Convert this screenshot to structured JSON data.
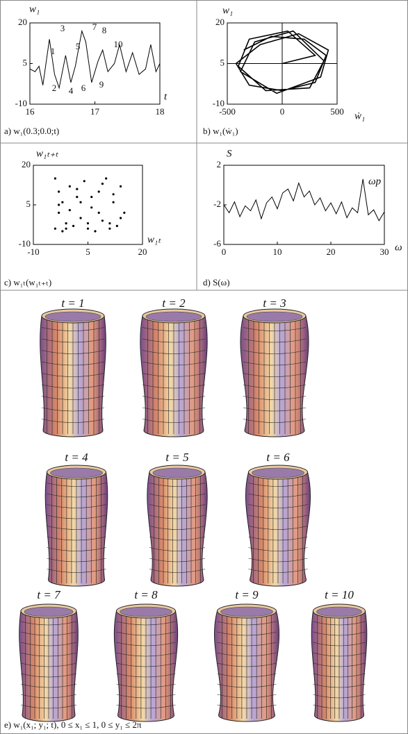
{
  "chart_data": [
    {
      "type": "line",
      "caption": "a) w₁(0.3;0.0;t)",
      "y_label": "w₁",
      "x_label": "t",
      "x": [
        16,
        16.08,
        16.14,
        16.2,
        16.3,
        16.38,
        16.45,
        16.55,
        16.63,
        16.7,
        16.8,
        16.86,
        16.95,
        17.05,
        17.12,
        17.2,
        17.3,
        17.38,
        17.48,
        17.58,
        17.68,
        17.78,
        17.86,
        17.94,
        18
      ],
      "values": [
        3,
        2,
        4,
        -3,
        14,
        1,
        -4,
        8,
        -2,
        4,
        17,
        13,
        -2,
        6,
        10,
        2,
        5,
        12,
        2,
        9,
        1,
        3,
        12,
        2,
        5
      ],
      "annotations": [
        "1",
        "2",
        "3",
        "4",
        "5",
        "6",
        "7",
        "8",
        "9",
        "10"
      ],
      "xlim": [
        16,
        18
      ],
      "xticks": [
        16,
        17,
        18
      ],
      "ylim": [
        -10,
        20
      ],
      "yticks": [
        -10,
        5,
        20
      ]
    },
    {
      "type": "line",
      "caption": "b) w₁(ẇ₁)",
      "y_label": "w₁",
      "x_label": "ẇ₁",
      "x": [
        -350,
        -100,
        200,
        400,
        300,
        0,
        -300,
        -420,
        -200,
        150,
        420,
        350,
        -50,
        -380,
        -250,
        100,
        380,
        250,
        -150,
        -400,
        -300,
        50,
        300,
        0
      ],
      "values": [
        10,
        15,
        14,
        8,
        -2,
        -5,
        -3,
        5,
        12,
        16,
        10,
        0,
        -6,
        2,
        13,
        17,
        6,
        -4,
        -5,
        4,
        14,
        17,
        8,
        5
      ],
      "xlim": [
        -500,
        500
      ],
      "xticks": [
        -500,
        0,
        500
      ],
      "ylim": [
        -10,
        20
      ],
      "yticks": [
        -10,
        5,
        20
      ]
    },
    {
      "type": "scatter",
      "caption": "c) w₁ₜ(w₁ₜ₊ₜ)",
      "y_label": "w₁ₜ₊ₜ",
      "x_label": "w₁ₜ",
      "x": [
        -4,
        -3,
        -2,
        -3,
        -1,
        0,
        2,
        4,
        6,
        8,
        10,
        12,
        14,
        15,
        -4,
        -2,
        1,
        3,
        5,
        7,
        9,
        11,
        13,
        -3,
        0,
        3,
        6,
        9,
        12,
        14,
        -1,
        2,
        5,
        8,
        11
      ],
      "values": [
        15,
        10,
        6,
        2,
        -2,
        12,
        8,
        14,
        4,
        10,
        15,
        6,
        12,
        2,
        -4,
        -5,
        -3,
        0,
        -2,
        -5,
        -1,
        -4,
        -3,
        5,
        3,
        6,
        8,
        13,
        9,
        0,
        -4,
        11,
        -4,
        2,
        -2
      ],
      "xlim": [
        -10,
        20
      ],
      "xticks": [
        -10,
        5,
        20
      ],
      "ylim": [
        -10,
        20
      ],
      "yticks": [
        -10,
        5,
        20
      ]
    },
    {
      "type": "line",
      "caption": "d) S(ω)",
      "y_label": "S",
      "x_label": "ω",
      "annotation": "ωp",
      "x": [
        0,
        1,
        2,
        3,
        4,
        5,
        6,
        7,
        8,
        9,
        10,
        11,
        12,
        13,
        14,
        15,
        16,
        17,
        18,
        19,
        20,
        21,
        22,
        23,
        24,
        25,
        26,
        27,
        28,
        29,
        30
      ],
      "values": [
        -2,
        -2.8,
        -1.7,
        -3.2,
        -2.1,
        -2.6,
        -1.5,
        -3.4,
        -1.8,
        -1.2,
        -2.4,
        -0.8,
        -0.4,
        -1.6,
        0.2,
        -1.2,
        -0.6,
        -2,
        -1.3,
        -2.6,
        -1.8,
        -2.9,
        -1.7,
        -3.3,
        -2.3,
        -2.8,
        0.6,
        -3,
        -2.5,
        -3.6,
        -2.7
      ],
      "xlim": [
        0,
        30
      ],
      "xticks": [
        0,
        10,
        20,
        30
      ],
      "ylim": [
        -6,
        2
      ],
      "yticks": [
        -6,
        -2,
        2
      ]
    }
  ],
  "panel_e": {
    "frames": [
      "t = 1",
      "t = 2",
      "t = 3",
      "t = 4",
      "t = 5",
      "t = 6",
      "t = 7",
      "t = 8",
      "t = 9",
      "t = 10"
    ],
    "caption": "e) w₁(x₁; y₁; t), 0 ≤ x₁ ≤ 1, 0 ≤ y₁ ≤ 2π"
  }
}
